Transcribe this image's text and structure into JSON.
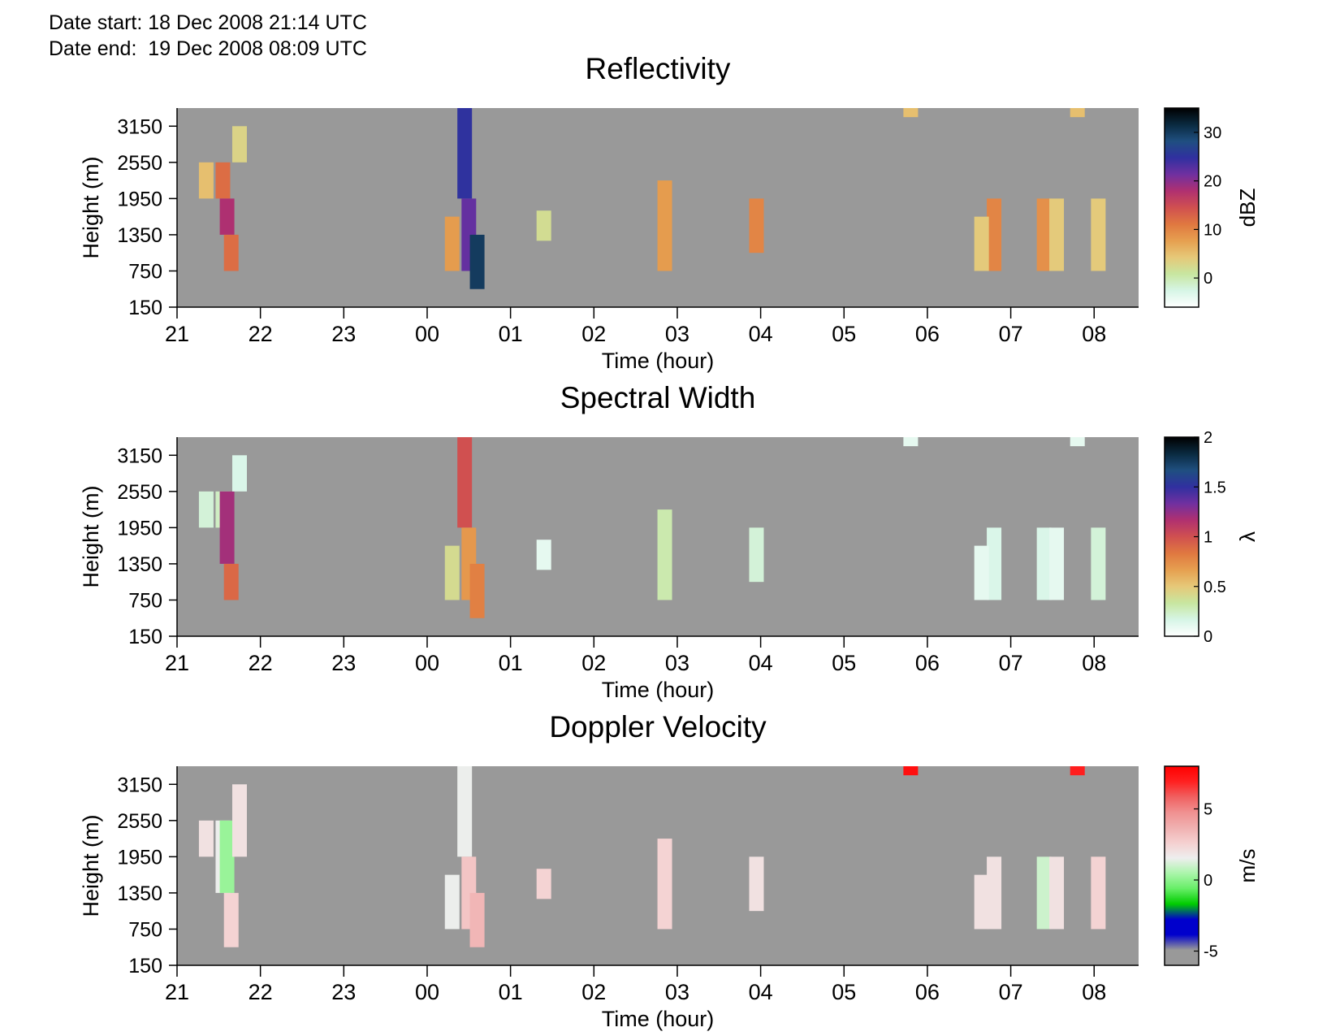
{
  "header": {
    "date_start": "Date start: 18 Dec 2008 21:14 UTC",
    "date_end": "Date end:  19 Dec 2008 08:09 UTC"
  },
  "chart_data": [
    {
      "type": "heatmap",
      "title": "Reflectivity",
      "xlabel": "Time (hour)",
      "ylabel": "Height (m)",
      "x_ticks": [
        "21",
        "22",
        "23",
        "00",
        "01",
        "02",
        "03",
        "04",
        "05",
        "06",
        "07",
        "08"
      ],
      "x_range": [
        "21:00",
        "08:32"
      ],
      "y_ticks": [
        150,
        750,
        1350,
        1950,
        2550,
        3150
      ],
      "ylim": [
        150,
        3450
      ],
      "colorbar": {
        "label": "dBZ",
        "ticks": [
          "0",
          "10",
          "20",
          "30"
        ],
        "range": [
          -6,
          35
        ],
        "colors": [
          "#ffffff",
          "#d6f5e6",
          "#c8e6a0",
          "#e6c878",
          "#e6a050",
          "#e07840",
          "#d05050",
          "#b03070",
          "#7030a0",
          "#3030a0",
          "#1f4f80",
          "#0a2a40",
          "#000000"
        ]
      },
      "missing_color": "#999999",
      "cells": [
        {
          "t": 21.55,
          "h": [
            1950,
            2550
          ],
          "dbz": 12
        },
        {
          "t": 21.6,
          "h": [
            1350,
            1950
          ],
          "dbz": 18
        },
        {
          "t": 21.65,
          "h": [
            750,
            1350
          ],
          "dbz": 12
        },
        {
          "t": 21.35,
          "h": [
            1950,
            2550
          ],
          "dbz": 5
        },
        {
          "t": 21.75,
          "h": [
            2550,
            3150
          ],
          "dbz": 3
        },
        {
          "t": 0.45,
          "h": [
            1950,
            3450
          ],
          "dbz": 25
        },
        {
          "t": 0.5,
          "h": [
            750,
            1950
          ],
          "dbz": 22
        },
        {
          "t": 0.6,
          "h": [
            450,
            1350
          ],
          "dbz": 30
        },
        {
          "t": 0.3,
          "h": [
            750,
            1650
          ],
          "dbz": 8
        },
        {
          "t": 1.4,
          "h": [
            1250,
            1750
          ],
          "dbz": 2
        },
        {
          "t": 2.85,
          "h": [
            750,
            2250
          ],
          "dbz": 8
        },
        {
          "t": 3.95,
          "h": [
            1050,
            1950
          ],
          "dbz": 10
        },
        {
          "t": 6.8,
          "h": [
            750,
            1950
          ],
          "dbz": 10
        },
        {
          "t": 6.65,
          "h": [
            750,
            1650
          ],
          "dbz": 4
        },
        {
          "t": 7.4,
          "h": [
            750,
            1950
          ],
          "dbz": 9
        },
        {
          "t": 7.55,
          "h": [
            750,
            1950
          ],
          "dbz": 4
        },
        {
          "t": 8.05,
          "h": [
            750,
            1950
          ],
          "dbz": 4
        },
        {
          "t": 5.8,
          "h": [
            3300,
            3450
          ],
          "dbz": 5
        },
        {
          "t": 7.8,
          "h": [
            3300,
            3450
          ],
          "dbz": 5
        }
      ]
    },
    {
      "type": "heatmap",
      "title": "Spectral Width",
      "xlabel": "Time (hour)",
      "ylabel": "Height (m)",
      "x_ticks": [
        "21",
        "22",
        "23",
        "00",
        "01",
        "02",
        "03",
        "04",
        "05",
        "06",
        "07",
        "08"
      ],
      "x_range": [
        "21:00",
        "08:32"
      ],
      "y_ticks": [
        150,
        750,
        1350,
        1950,
        2550,
        3150
      ],
      "ylim": [
        150,
        3450
      ],
      "colorbar": {
        "label": "λ",
        "ticks": [
          "0",
          "0.5",
          "1",
          "1.5",
          "2"
        ],
        "range": [
          0,
          2
        ],
        "colors": [
          "#ffffff",
          "#d6f5e6",
          "#c8e6a0",
          "#e6c878",
          "#e6a050",
          "#e07840",
          "#d05050",
          "#b03070",
          "#7030a0",
          "#3030a0",
          "#1f4f80",
          "#0a2a40",
          "#000000"
        ]
      },
      "missing_color": "#999999",
      "cells": [
        {
          "t": 21.55,
          "h": [
            1950,
            2550
          ],
          "w": 0.25
        },
        {
          "t": 21.6,
          "h": [
            1350,
            2550
          ],
          "w": 1.2
        },
        {
          "t": 21.65,
          "h": [
            750,
            1350
          ],
          "w": 0.9
        },
        {
          "t": 21.35,
          "h": [
            1950,
            2550
          ],
          "w": 0.2
        },
        {
          "t": 21.75,
          "h": [
            2550,
            3150
          ],
          "w": 0.15
        },
        {
          "t": 0.45,
          "h": [
            1950,
            3450
          ],
          "w": 1.0
        },
        {
          "t": 0.5,
          "h": [
            750,
            1950
          ],
          "w": 0.7
        },
        {
          "t": 0.6,
          "h": [
            450,
            1350
          ],
          "w": 0.8
        },
        {
          "t": 0.3,
          "h": [
            750,
            1650
          ],
          "w": 0.4
        },
        {
          "t": 1.4,
          "h": [
            1250,
            1750
          ],
          "w": 0.1
        },
        {
          "t": 2.85,
          "h": [
            750,
            2250
          ],
          "w": 0.3
        },
        {
          "t": 3.95,
          "h": [
            1050,
            1950
          ],
          "w": 0.2
        },
        {
          "t": 6.8,
          "h": [
            750,
            1950
          ],
          "w": 0.15
        },
        {
          "t": 6.65,
          "h": [
            750,
            1650
          ],
          "w": 0.1
        },
        {
          "t": 7.4,
          "h": [
            750,
            1950
          ],
          "w": 0.15
        },
        {
          "t": 7.55,
          "h": [
            750,
            1950
          ],
          "w": 0.1
        },
        {
          "t": 8.05,
          "h": [
            750,
            1950
          ],
          "w": 0.2
        },
        {
          "t": 5.8,
          "h": [
            3300,
            3450
          ],
          "w": 0.1
        },
        {
          "t": 7.8,
          "h": [
            3300,
            3450
          ],
          "w": 0.1
        }
      ]
    },
    {
      "type": "heatmap",
      "title": "Doppler Velocity",
      "xlabel": "Time (hour)",
      "ylabel": "Height (m)",
      "x_ticks": [
        "21",
        "22",
        "23",
        "00",
        "01",
        "02",
        "03",
        "04",
        "05",
        "06",
        "07",
        "08"
      ],
      "x_range": [
        "21:00",
        "08:32"
      ],
      "y_ticks": [
        150,
        750,
        1350,
        1950,
        2550,
        3150
      ],
      "ylim": [
        150,
        3450
      ],
      "colorbar": {
        "label": "m/s",
        "ticks": [
          "-5",
          "0",
          "5"
        ],
        "range": [
          -6,
          8
        ],
        "colors": [
          "#999999",
          "#999999",
          "#0000cc",
          "#0000cc",
          "#00cc00",
          "#66ee66",
          "#aaf5aa",
          "#eeeeee",
          "#f5d0d0",
          "#f0b0b0",
          "#f09090",
          "#f06060",
          "#ff2020",
          "#ff0000"
        ]
      },
      "missing_color": "#999999",
      "cells": [
        {
          "t": 21.55,
          "h": [
            1350,
            2550
          ],
          "v": 1.5
        },
        {
          "t": 21.6,
          "h": [
            1350,
            2550
          ],
          "v": 0.2
        },
        {
          "t": 21.65,
          "h": [
            450,
            1350
          ],
          "v": 2.5
        },
        {
          "t": 21.35,
          "h": [
            1950,
            2550
          ],
          "v": 2.0
        },
        {
          "t": 21.75,
          "h": [
            1950,
            3150
          ],
          "v": 2.0
        },
        {
          "t": 0.45,
          "h": [
            1950,
            3450
          ],
          "v": 1.5
        },
        {
          "t": 0.5,
          "h": [
            750,
            1950
          ],
          "v": 3.0
        },
        {
          "t": 0.6,
          "h": [
            450,
            1350
          ],
          "v": 3.5
        },
        {
          "t": 0.3,
          "h": [
            750,
            1650
          ],
          "v": 1.5
        },
        {
          "t": 1.4,
          "h": [
            1250,
            1750
          ],
          "v": 2.5
        },
        {
          "t": 2.85,
          "h": [
            750,
            2250
          ],
          "v": 2.5
        },
        {
          "t": 3.95,
          "h": [
            1050,
            1950
          ],
          "v": 2.0
        },
        {
          "t": 6.8,
          "h": [
            750,
            1950
          ],
          "v": 2.0
        },
        {
          "t": 6.65,
          "h": [
            750,
            1650
          ],
          "v": 2.0
        },
        {
          "t": 7.4,
          "h": [
            750,
            1950
          ],
          "v": 1.0
        },
        {
          "t": 7.55,
          "h": [
            750,
            1950
          ],
          "v": 2.0
        },
        {
          "t": 8.05,
          "h": [
            750,
            1950
          ],
          "v": 2.5
        },
        {
          "t": 5.8,
          "h": [
            3300,
            3450
          ],
          "v": 7.5
        },
        {
          "t": 7.8,
          "h": [
            3300,
            3450
          ],
          "v": 7.0
        }
      ]
    }
  ]
}
